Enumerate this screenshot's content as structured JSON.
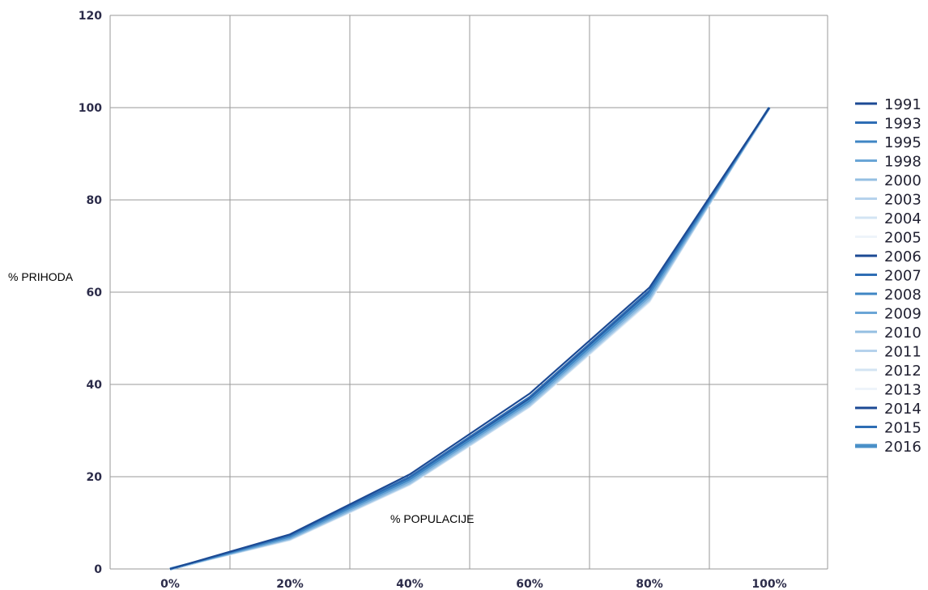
{
  "chart_data": {
    "type": "line",
    "title": "",
    "xlabel": "% POPULACIJE",
    "ylabel": "% PRIHODA",
    "categories": [
      "0%",
      "20%",
      "40%",
      "60%",
      "80%",
      "100%"
    ],
    "y_ticks": [
      "0",
      "20",
      "40",
      "60",
      "80",
      "100",
      "120"
    ],
    "ylim": [
      0,
      120
    ],
    "grid": true,
    "legend_position": "right",
    "series": [
      {
        "name": "1991",
        "color": "#1c4a94",
        "values": [
          0,
          7.5,
          20.5,
          38.0,
          61.0,
          100
        ]
      },
      {
        "name": "1993",
        "color": "#2e6db4",
        "values": [
          0,
          7.3,
          20.0,
          37.3,
          60.4,
          100
        ]
      },
      {
        "name": "1995",
        "color": "#3f86c4",
        "values": [
          0,
          7.0,
          19.5,
          36.6,
          59.7,
          100
        ]
      },
      {
        "name": "1998",
        "color": "#6aa5d6",
        "values": [
          0,
          6.7,
          19.0,
          36.0,
          59.0,
          100
        ]
      },
      {
        "name": "2000",
        "color": "#94bfe2",
        "values": [
          0,
          6.5,
          18.6,
          35.6,
          58.5,
          100
        ]
      },
      {
        "name": "2003",
        "color": "#b5d2ec",
        "values": [
          0,
          6.4,
          18.4,
          35.3,
          58.2,
          100
        ]
      },
      {
        "name": "2004",
        "color": "#d3e4f3",
        "values": [
          0,
          6.3,
          18.3,
          35.2,
          58.0,
          100
        ]
      },
      {
        "name": "2005",
        "color": "#eef4fa",
        "values": [
          0,
          6.2,
          18.2,
          35.1,
          57.8,
          100
        ]
      },
      {
        "name": "2006",
        "color": "#1c4a94",
        "values": [
          0,
          7.2,
          19.8,
          37.0,
          60.3,
          100
        ]
      },
      {
        "name": "2007",
        "color": "#2e6db4",
        "values": [
          0,
          7.0,
          19.5,
          36.6,
          59.8,
          100
        ]
      },
      {
        "name": "2008",
        "color": "#3f86c4",
        "values": [
          0,
          6.9,
          19.3,
          36.4,
          59.5,
          100
        ]
      },
      {
        "name": "2009",
        "color": "#6aa5d6",
        "values": [
          0,
          6.8,
          19.1,
          36.2,
          59.2,
          100
        ]
      },
      {
        "name": "2010",
        "color": "#94bfe2",
        "values": [
          0,
          6.6,
          18.9,
          35.9,
          58.9,
          100
        ]
      },
      {
        "name": "2011",
        "color": "#b5d2ec",
        "values": [
          0,
          6.5,
          18.8,
          35.8,
          58.7,
          100
        ]
      },
      {
        "name": "2012",
        "color": "#d3e4f3",
        "values": [
          0,
          6.4,
          18.6,
          35.6,
          58.4,
          100
        ]
      },
      {
        "name": "2013",
        "color": "#eef4fa",
        "values": [
          0,
          6.3,
          18.5,
          35.5,
          58.3,
          100
        ]
      },
      {
        "name": "2014",
        "color": "#1c4a94",
        "values": [
          0,
          7.1,
          19.7,
          36.8,
          60.0,
          100
        ]
      },
      {
        "name": "2015",
        "color": "#2e6db4",
        "values": [
          0,
          6.9,
          19.3,
          36.3,
          59.4,
          100
        ]
      },
      {
        "name": "2016",
        "color": "#4a90c8",
        "values": [
          0,
          6.6,
          18.9,
          35.8,
          58.8,
          100
        ]
      }
    ]
  }
}
